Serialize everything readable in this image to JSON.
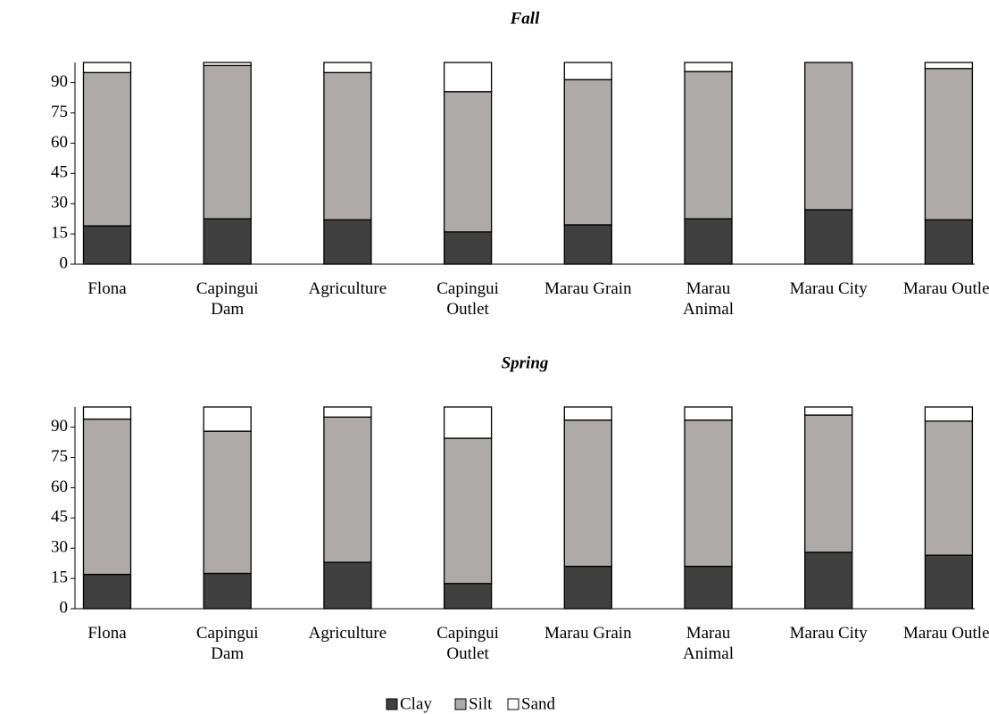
{
  "chart_data": [
    {
      "type": "stacked-bar",
      "title": "Fall",
      "categories": [
        "Flona",
        "Capingui\nDam",
        "Agriculture",
        "Capingui\nOutlet",
        "Marau Grain",
        "Marau\nAnimal",
        "Marau City",
        "Marau Outlet"
      ],
      "series": [
        {
          "name": "Clay",
          "color": "#404040",
          "values": [
            19,
            22.5,
            22,
            16,
            19.5,
            22.5,
            27,
            22
          ]
        },
        {
          "name": "Silt",
          "color": "#aeaaaa",
          "values": [
            76,
            76,
            73,
            69.5,
            72,
            73,
            73,
            75
          ]
        },
        {
          "name": "Sand",
          "color": "#ffffff",
          "values": [
            5,
            1.5,
            5,
            14.5,
            8.5,
            4.5,
            0,
            3
          ]
        }
      ],
      "ylim": [
        0,
        100
      ],
      "yticks": [
        0,
        15,
        30,
        45,
        60,
        75,
        90
      ]
    },
    {
      "type": "stacked-bar",
      "title": "Spring",
      "categories": [
        "Flona",
        "Capingui\nDam",
        "Agriculture",
        "Capingui\nOutlet",
        "Marau Grain",
        "Marau\nAnimal",
        "Marau City",
        "Marau Outlet"
      ],
      "series": [
        {
          "name": "Clay",
          "color": "#404040",
          "values": [
            17,
            17.5,
            23,
            12.5,
            21,
            21,
            28,
            26.5
          ]
        },
        {
          "name": "Silt",
          "color": "#aeaaaa",
          "values": [
            77,
            70.5,
            72,
            72,
            72.5,
            72.5,
            68,
            66.5
          ]
        },
        {
          "name": "Sand",
          "color": "#ffffff",
          "values": [
            6,
            12,
            5,
            15.5,
            6.5,
            6.5,
            4,
            7
          ]
        }
      ],
      "ylim": [
        0,
        100
      ],
      "yticks": [
        0,
        15,
        30,
        45,
        60,
        75,
        90
      ]
    }
  ]
}
